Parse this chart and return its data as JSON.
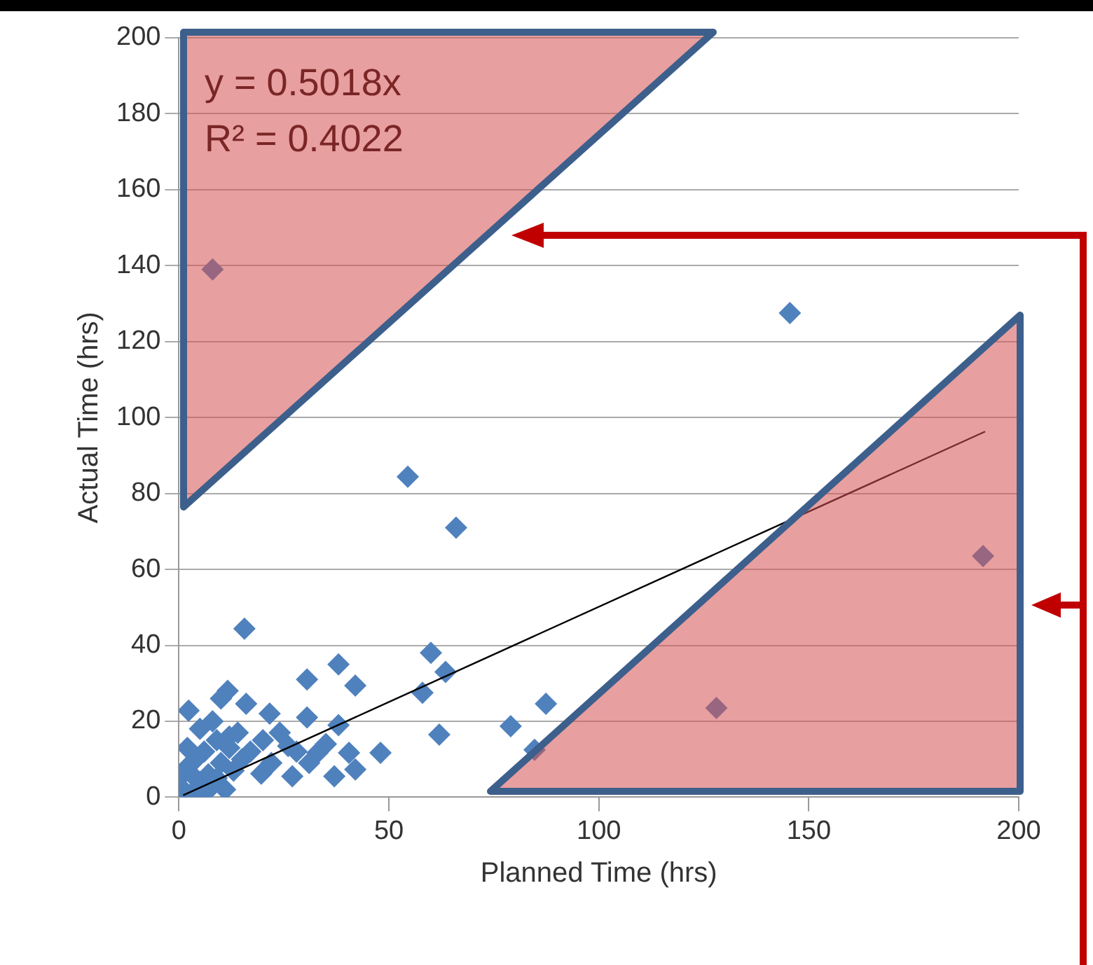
{
  "chart_data": {
    "type": "scatter",
    "xlabel": "Planned Time (hrs)",
    "ylabel": "Actual Time (hrs)",
    "xlim": [
      0,
      200
    ],
    "xticks": [
      0,
      50,
      100,
      150,
      200
    ],
    "ylim": [
      0,
      200
    ],
    "yticks": [
      0,
      20,
      40,
      60,
      80,
      100,
      120,
      140,
      160,
      180,
      200
    ],
    "grid": "y",
    "legend": false,
    "marker": "diamond",
    "annotations": [
      "y = 0.5018x",
      "R² = 0.4022"
    ],
    "series": [
      {
        "color": "#4f81bd",
        "x": [
          8,
          145.5,
          191.5,
          128,
          84.7,
          54.5,
          66,
          15.6,
          60,
          63.5,
          58,
          62,
          79,
          87.4,
          48,
          38,
          30.5,
          42,
          2.3,
          11.6,
          16,
          21.6,
          30.5,
          38,
          26,
          27,
          37,
          42,
          19.6,
          40.5,
          33,
          0,
          1,
          2,
          3,
          4,
          5,
          6,
          7,
          8,
          9,
          10,
          11,
          12,
          13,
          14,
          15,
          3,
          6,
          9,
          12,
          5,
          2,
          17,
          20,
          22,
          24,
          8,
          10,
          35,
          31,
          28
        ],
        "values": [
          139,
          127.5,
          63.5,
          23.5,
          12.5,
          84.4,
          71,
          44.4,
          38,
          33,
          27.5,
          16.5,
          18.7,
          24.6,
          11.7,
          35,
          31,
          29.4,
          22.8,
          28,
          24.6,
          22,
          21,
          19,
          13.5,
          5.5,
          5.5,
          7.3,
          6.2,
          11.7,
          11.7,
          5,
          2,
          8,
          1,
          10,
          4,
          12,
          6,
          3,
          15,
          9,
          2,
          13,
          7,
          17,
          10,
          6,
          1,
          5,
          16,
          18,
          13,
          12,
          15,
          9,
          17,
          20,
          26,
          14,
          9,
          12
        ]
      },
      {
        "type": "line",
        "color": "#000000",
        "marker": "none",
        "x": [
          1,
          192
        ],
        "values": [
          0.5,
          96.3
        ]
      }
    ]
  }
}
